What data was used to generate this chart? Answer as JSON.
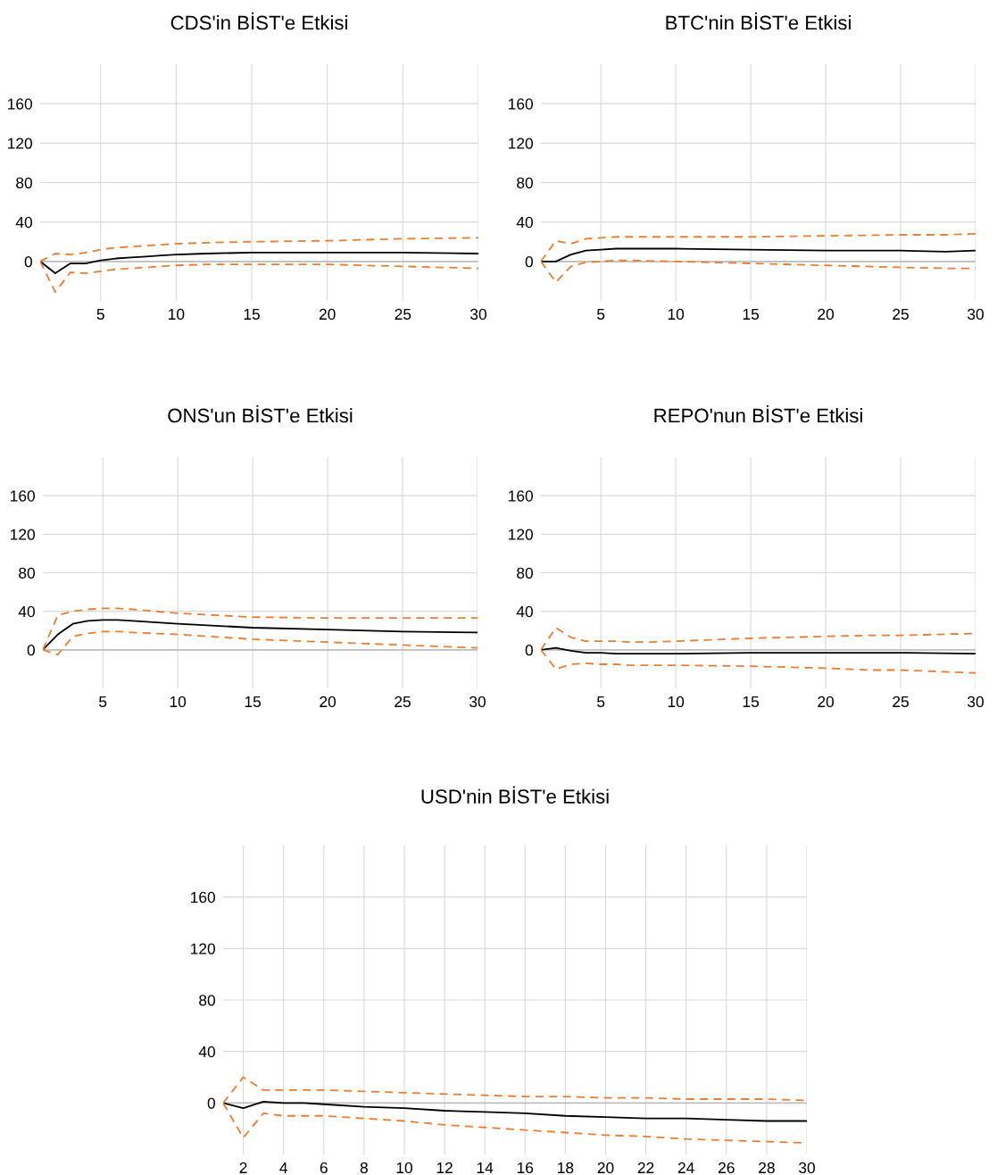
{
  "chart_data": [
    {
      "type": "line",
      "title": "CDS'in BİST'e Etkisi",
      "x": [
        1,
        2,
        3,
        4,
        5,
        6,
        7,
        8,
        9,
        10,
        12,
        15,
        20,
        25,
        30
      ],
      "xlim": [
        1,
        30
      ],
      "xticks": [
        5,
        10,
        15,
        20,
        25,
        30
      ],
      "ylim": [
        -40,
        200
      ],
      "yticks": [
        0,
        40,
        80,
        120,
        160
      ],
      "grid": true,
      "ref_lines": [
        {
          "axis": "y",
          "value": 0,
          "color": "#bfbfbf"
        }
      ],
      "series": [
        {
          "color": "#000000",
          "line_style": "solid",
          "values": [
            0,
            -12,
            -2,
            -2,
            1,
            3,
            4,
            5,
            6,
            7,
            8,
            9,
            9,
            9,
            8
          ]
        },
        {
          "color": "#ed7d31",
          "line_style": "dashed",
          "values": [
            0,
            8,
            7,
            9,
            12,
            14,
            15,
            16,
            17,
            18,
            19,
            20,
            21,
            23,
            24
          ]
        },
        {
          "color": "#ed7d31",
          "line_style": "dashed",
          "values": [
            0,
            -31,
            -11,
            -12,
            -10,
            -8,
            -7,
            -6,
            -5,
            -4,
            -3,
            -3,
            -3,
            -5,
            -7
          ]
        }
      ]
    },
    {
      "type": "line",
      "title": "BTC'nin BİST'e Etkisi",
      "x": [
        1,
        2,
        3,
        4,
        5,
        6,
        7,
        10,
        15,
        20,
        25,
        28,
        30
      ],
      "xlim": [
        1,
        30
      ],
      "xticks": [
        5,
        10,
        15,
        20,
        25,
        30
      ],
      "ylim": [
        -40,
        200
      ],
      "yticks": [
        0,
        40,
        80,
        120,
        160
      ],
      "grid": true,
      "ref_lines": [
        {
          "axis": "y",
          "value": 0,
          "color": "#bfbfbf"
        }
      ],
      "series": [
        {
          "color": "#000000",
          "line_style": "solid",
          "values": [
            0,
            0,
            7,
            11,
            12,
            13,
            13,
            13,
            12,
            11,
            11,
            10,
            11
          ]
        },
        {
          "color": "#ed7d31",
          "line_style": "dashed",
          "values": [
            0,
            21,
            18,
            23,
            24,
            25,
            25,
            25,
            25,
            26,
            27,
            27,
            28
          ]
        },
        {
          "color": "#ed7d31",
          "line_style": "dashed",
          "values": [
            0,
            -21,
            -5,
            -1,
            0,
            1,
            1,
            0,
            -2,
            -4,
            -6,
            -7,
            -7
          ]
        }
      ]
    },
    {
      "type": "line",
      "title": "ONS'un BİST'e Etkisi",
      "x": [
        1,
        2,
        3,
        4,
        5,
        6,
        7,
        10,
        15,
        20,
        25,
        30
      ],
      "xlim": [
        1,
        30
      ],
      "xticks": [
        5,
        10,
        15,
        20,
        25,
        30
      ],
      "ylim": [
        -40,
        200
      ],
      "yticks": [
        0,
        40,
        80,
        120,
        160
      ],
      "grid": true,
      "ref_lines": [
        {
          "axis": "y",
          "value": 0,
          "color": "#bfbfbf"
        }
      ],
      "series": [
        {
          "color": "#000000",
          "line_style": "solid",
          "values": [
            0,
            16,
            27,
            30,
            31,
            31,
            30,
            27,
            23,
            21,
            19,
            18
          ]
        },
        {
          "color": "#ed7d31",
          "line_style": "dashed",
          "values": [
            0,
            36,
            40,
            42,
            43,
            43,
            42,
            38,
            34,
            33,
            33,
            33
          ]
        },
        {
          "color": "#ed7d31",
          "line_style": "dashed",
          "values": [
            0,
            -5,
            14,
            17,
            19,
            19,
            18,
            16,
            11,
            8,
            5,
            2
          ]
        }
      ]
    },
    {
      "type": "line",
      "title": "REPO'nun BİST'e Etkisi",
      "x": [
        1,
        2,
        3,
        4,
        5,
        6,
        7,
        8,
        10,
        15,
        20,
        23,
        25,
        30
      ],
      "xlim": [
        1,
        30
      ],
      "xticks": [
        5,
        10,
        15,
        20,
        25,
        30
      ],
      "ylim": [
        -40,
        200
      ],
      "yticks": [
        0,
        40,
        80,
        120,
        160
      ],
      "grid": true,
      "ref_lines": [
        {
          "axis": "y",
          "value": 0,
          "color": "#bfbfbf"
        }
      ],
      "series": [
        {
          "color": "#000000",
          "line_style": "solid",
          "values": [
            0,
            2,
            -1,
            -3,
            -3,
            -4,
            -4,
            -4,
            -4,
            -3,
            -3,
            -3,
            -3,
            -4
          ]
        },
        {
          "color": "#ed7d31",
          "line_style": "dashed",
          "values": [
            0,
            23,
            13,
            9,
            9,
            9,
            8,
            8,
            9,
            12,
            14,
            15,
            15,
            17
          ]
        },
        {
          "color": "#ed7d31",
          "line_style": "dashed",
          "values": [
            0,
            -20,
            -15,
            -14,
            -15,
            -15,
            -16,
            -16,
            -16,
            -17,
            -19,
            -21,
            -21,
            -24
          ]
        }
      ]
    },
    {
      "type": "line",
      "title": "USD'nin BİST'e Etkisi",
      "x": [
        1,
        2,
        3,
        4,
        5,
        6,
        8,
        10,
        12,
        14,
        16,
        18,
        20,
        22,
        24,
        26,
        28,
        30
      ],
      "xlim": [
        1,
        30
      ],
      "xticks": [
        2,
        4,
        6,
        8,
        10,
        12,
        14,
        16,
        18,
        20,
        22,
        24,
        26,
        28,
        30
      ],
      "ylim": [
        -40,
        200
      ],
      "yticks": [
        0,
        40,
        80,
        120,
        160
      ],
      "grid": true,
      "ref_lines": [
        {
          "axis": "y",
          "value": 0,
          "color": "#bfbfbf"
        }
      ],
      "series": [
        {
          "color": "#000000",
          "line_style": "solid",
          "values": [
            0,
            -4,
            1,
            0,
            0,
            -1,
            -3,
            -4,
            -6,
            -7,
            -8,
            -10,
            -11,
            -12,
            -12,
            -13,
            -14,
            -14
          ]
        },
        {
          "color": "#ed7d31",
          "line_style": "dashed",
          "values": [
            0,
            20,
            10,
            10,
            10,
            10,
            9,
            8,
            7,
            6,
            5,
            5,
            4,
            4,
            3,
            3,
            3,
            2
          ]
        },
        {
          "color": "#ed7d31",
          "line_style": "dashed",
          "values": [
            0,
            -27,
            -8,
            -10,
            -10,
            -10,
            -12,
            -14,
            -17,
            -19,
            -21,
            -23,
            -25,
            -26,
            -28,
            -29,
            -30,
            -31
          ]
        }
      ]
    }
  ]
}
